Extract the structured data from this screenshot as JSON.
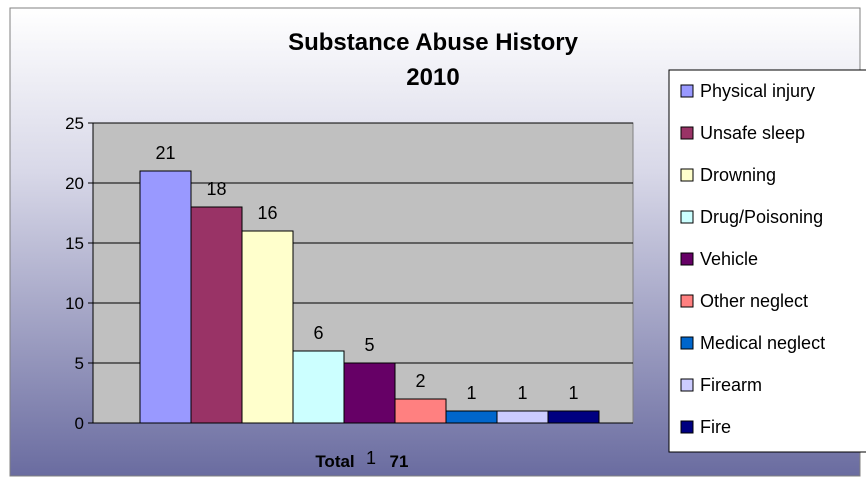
{
  "chart_data": {
    "type": "bar",
    "title": "Substance Abuse History",
    "subtitle": "2010",
    "categories": [
      "Physical injury",
      "Unsafe sleep",
      "Drowning",
      "Drug/Poisoning",
      "Vehicle",
      "Other neglect",
      "Medical neglect",
      "Firearm",
      "Fire"
    ],
    "values": [
      21,
      18,
      16,
      6,
      5,
      2,
      1,
      1,
      1
    ],
    "colors": [
      "#9999ff",
      "#993366",
      "#ffffcc",
      "#ccffff",
      "#660066",
      "#ff8080",
      "#0066cc",
      "#ccccff",
      "#000080"
    ],
    "ylim": [
      0,
      25
    ],
    "yticks": [
      0,
      5,
      10,
      15,
      20,
      25
    ],
    "x_axis_label": "Total",
    "axis_annotation": "1",
    "total_value": "71",
    "grid": true,
    "legend_position": "right"
  },
  "colors": {
    "background_top": "#ffffff",
    "background_bottom": "#6a6ca0",
    "plot_area": "#c0c0c0"
  }
}
